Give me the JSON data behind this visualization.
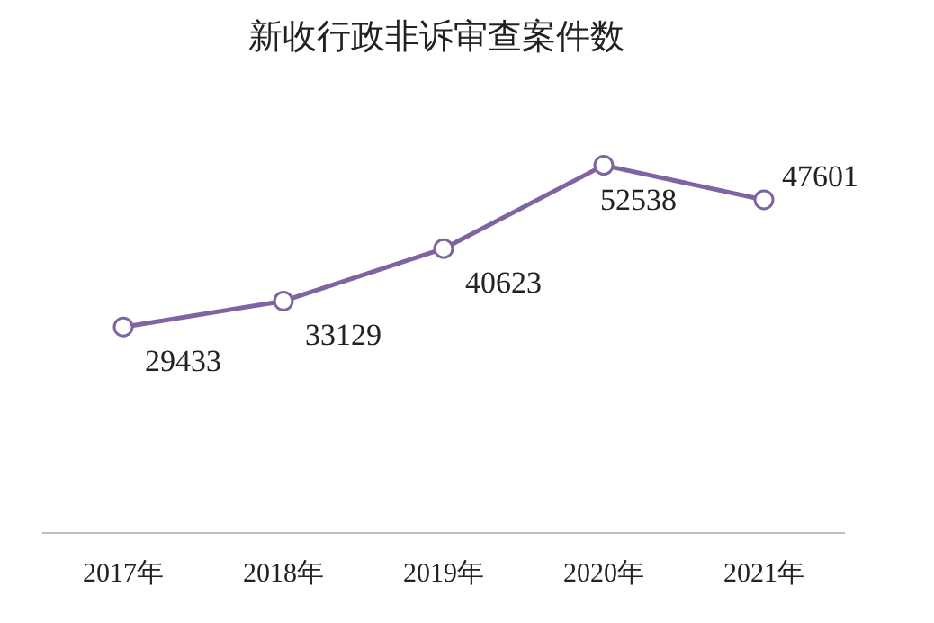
{
  "chart_data": {
    "type": "line",
    "title": "新收行政非诉审查案件数",
    "categories": [
      "2017年",
      "2018年",
      "2019年",
      "2020年",
      "2021年"
    ],
    "series": [
      {
        "color": "#8064a2",
        "values": [
          29433,
          33129,
          40623,
          52538,
          47601
        ]
      }
    ],
    "data_labels": true,
    "marker": "circle",
    "grid": false,
    "legend": false,
    "tick_labels": "x"
  }
}
